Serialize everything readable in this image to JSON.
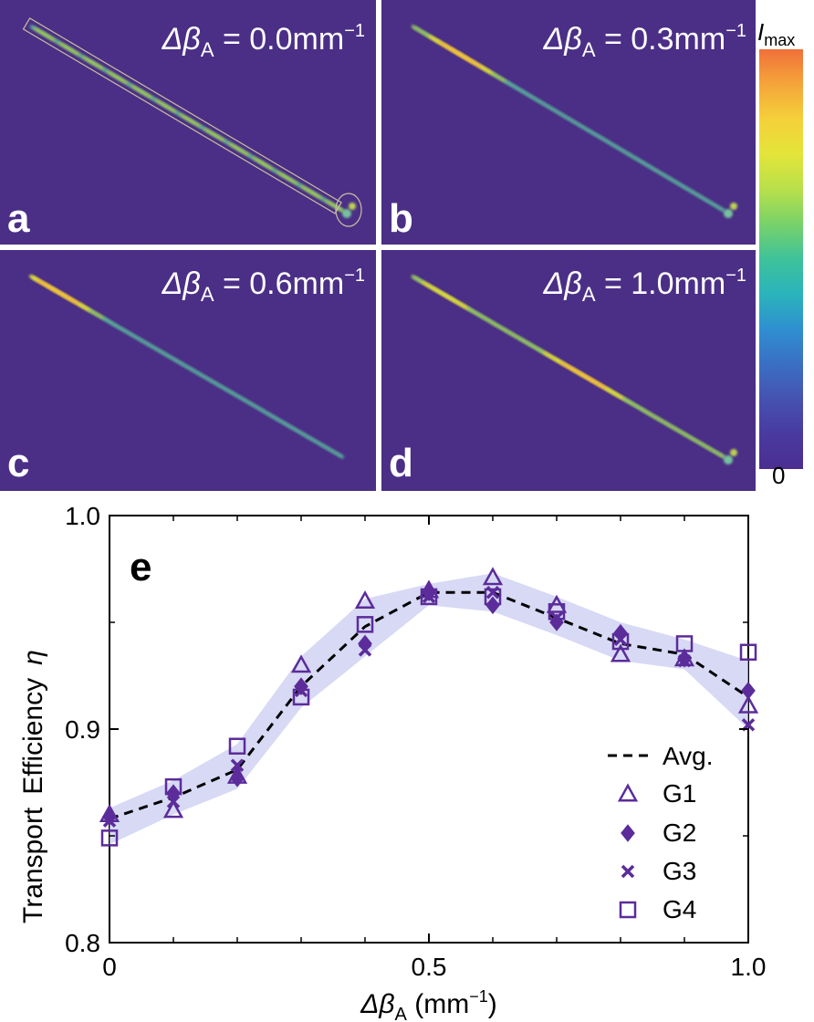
{
  "figure": {
    "panels": [
      {
        "letter": "a",
        "title_prefix": "Δβ",
        "title_sub": "A",
        "title_value": " = 0.0mm",
        "title_sup": "−1",
        "outlined": true,
        "hotspot": 0.12
      },
      {
        "letter": "b",
        "title_prefix": "Δβ",
        "title_sub": "A",
        "title_value": " = 0.3mm",
        "title_sup": "−1",
        "outlined": false,
        "hotspot": 0.15
      },
      {
        "letter": "c",
        "title_prefix": "Δβ",
        "title_sub": "A",
        "title_value": " = 0.6mm",
        "title_sup": "−1",
        "outlined": false,
        "hotspot": 0.08
      },
      {
        "letter": "d",
        "title_prefix": "Δβ",
        "title_sub": "A",
        "title_value": " = 1.0mm",
        "title_sup": "−1",
        "outlined": false,
        "hotspot": 0.55
      }
    ],
    "colorbar": {
      "top_label_main": "I",
      "top_label_sub": "max",
      "bottom_label": "0",
      "colors": [
        "#f0703a",
        "#f5a53a",
        "#f5d03a",
        "#e3e53a",
        "#b8e04a",
        "#78d26a",
        "#3ec29a",
        "#2ab4bb",
        "#2f8fd0",
        "#3a6fc4",
        "#4652b0",
        "#493aa0",
        "#4b2e90"
      ]
    },
    "background_color": "#4b2f86",
    "accent_color": "#5b2c9a"
  },
  "chart_data": {
    "type": "scatter",
    "panel_letter": "e",
    "xlabel_prefix": "Δβ",
    "xlabel_sub": "A",
    "xlabel_unit": " (mm",
    "xlabel_sup": "−1",
    "xlabel_close": ")",
    "ylabel_parts": [
      "Transport",
      "Efficiency",
      "η"
    ],
    "xlim": [
      0,
      1.0
    ],
    "ylim": [
      0.8,
      1.0
    ],
    "x_ticks": [
      0,
      0.5,
      1.0
    ],
    "x_tick_labels": [
      "0",
      "0.5",
      "1.0"
    ],
    "x_minor_ticks": [
      0.1,
      0.2,
      0.3,
      0.4,
      0.6,
      0.7,
      0.8,
      0.9
    ],
    "y_ticks": [
      0.8,
      0.9,
      1.0
    ],
    "y_tick_labels": [
      "0.8",
      "0.9",
      "1.0"
    ],
    "y_minor_ticks": [
      0.85,
      0.95
    ],
    "x": [
      0,
      0.1,
      0.2,
      0.3,
      0.4,
      0.5,
      0.6,
      0.7,
      0.8,
      0.9,
      1.0
    ],
    "series": [
      {
        "name": "Avg.",
        "marker": "dashed-line",
        "values": [
          0.858,
          0.868,
          0.881,
          0.92,
          0.948,
          0.964,
          0.964,
          0.952,
          0.94,
          0.935,
          0.915
        ]
      },
      {
        "name": "G1",
        "marker": "triangle",
        "values": [
          0.86,
          0.862,
          0.878,
          0.93,
          0.96,
          0.965,
          0.971,
          0.958,
          0.935,
          0.933,
          0.911
        ]
      },
      {
        "name": "G2",
        "marker": "diamond",
        "values": [
          0.859,
          0.87,
          0.877,
          0.92,
          0.94,
          0.964,
          0.958,
          0.95,
          0.945,
          0.933,
          0.918
        ]
      },
      {
        "name": "G3",
        "marker": "x",
        "values": [
          0.857,
          0.866,
          0.883,
          0.918,
          0.937,
          0.962,
          0.964,
          0.952,
          0.942,
          0.932,
          0.902
        ]
      },
      {
        "name": "G4",
        "marker": "square",
        "values": [
          0.849,
          0.873,
          0.892,
          0.915,
          0.949,
          0.962,
          0.962,
          0.955,
          0.941,
          0.94,
          0.936
        ]
      }
    ],
    "band": {
      "upper": [
        0.863,
        0.876,
        0.893,
        0.934,
        0.961,
        0.968,
        0.973,
        0.962,
        0.95,
        0.942,
        0.932
      ],
      "lower": [
        0.846,
        0.86,
        0.872,
        0.91,
        0.934,
        0.958,
        0.955,
        0.944,
        0.932,
        0.928,
        0.9
      ]
    },
    "legend_position": "lower-right",
    "marker_color": "#5b2c9a",
    "band_color": "#c9ccf2"
  }
}
